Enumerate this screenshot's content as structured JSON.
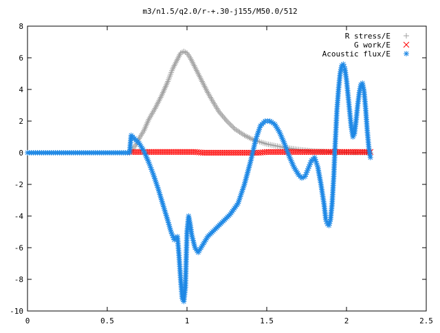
{
  "chart_data": {
    "type": "scatter",
    "title": "m3/n1.5/q2.0/r-+.30-j155/M50.0/512",
    "xlabel": "",
    "ylabel": "",
    "xlim": [
      0,
      2.5
    ],
    "ylim": [
      -10,
      8
    ],
    "x_ticks": [
      "0",
      "0.5",
      "1",
      "1.5",
      "2",
      "2.5"
    ],
    "y_ticks": [
      "-10",
      "-8",
      "-6",
      "-4",
      "-2",
      "0",
      "2",
      "4",
      "6",
      "8"
    ],
    "legend_position": "top-right",
    "grid": false,
    "series": [
      {
        "name": "R stress/E",
        "marker": "+",
        "color": "#a0a0a0",
        "points": [
          [
            0.65,
            0.1
          ],
          [
            0.68,
            0.5
          ],
          [
            0.7,
            0.9
          ],
          [
            0.73,
            1.4
          ],
          [
            0.76,
            2.1
          ],
          [
            0.8,
            2.8
          ],
          [
            0.84,
            3.6
          ],
          [
            0.88,
            4.5
          ],
          [
            0.91,
            5.3
          ],
          [
            0.94,
            5.9
          ],
          [
            0.96,
            6.3
          ],
          [
            0.98,
            6.4
          ],
          [
            1.0,
            6.3
          ],
          [
            1.02,
            6.0
          ],
          [
            1.04,
            5.6
          ],
          [
            1.07,
            5.0
          ],
          [
            1.1,
            4.4
          ],
          [
            1.13,
            3.8
          ],
          [
            1.17,
            3.1
          ],
          [
            1.2,
            2.6
          ],
          [
            1.25,
            2.0
          ],
          [
            1.3,
            1.5
          ],
          [
            1.36,
            1.1
          ],
          [
            1.42,
            0.8
          ],
          [
            1.5,
            0.55
          ],
          [
            1.6,
            0.35
          ],
          [
            1.7,
            0.2
          ],
          [
            1.8,
            0.1
          ],
          [
            1.9,
            0.05
          ],
          [
            2.0,
            0.02
          ],
          [
            2.1,
            0.01
          ],
          [
            2.15,
            0.0
          ]
        ]
      },
      {
        "name": "G work/E",
        "marker": "x",
        "color": "#ff0000",
        "points": [
          [
            0.65,
            0.05
          ],
          [
            0.7,
            0.05
          ],
          [
            0.75,
            0.05
          ],
          [
            0.8,
            0.05
          ],
          [
            0.85,
            0.05
          ],
          [
            0.9,
            0.05
          ],
          [
            0.95,
            0.05
          ],
          [
            1.0,
            0.05
          ],
          [
            1.05,
            0.05
          ],
          [
            1.1,
            0.0
          ],
          [
            1.15,
            0.0
          ],
          [
            1.2,
            0.0
          ],
          [
            1.25,
            0.0
          ],
          [
            1.3,
            0.0
          ],
          [
            1.35,
            0.0
          ],
          [
            1.4,
            0.0
          ],
          [
            1.45,
            0.0
          ],
          [
            1.5,
            0.05
          ],
          [
            1.55,
            0.05
          ],
          [
            1.6,
            0.05
          ],
          [
            1.65,
            0.05
          ],
          [
            1.7,
            0.05
          ],
          [
            1.75,
            0.05
          ],
          [
            1.8,
            0.05
          ],
          [
            1.85,
            0.05
          ],
          [
            1.9,
            0.05
          ],
          [
            1.95,
            0.05
          ],
          [
            2.0,
            0.05
          ],
          [
            2.05,
            0.05
          ],
          [
            2.1,
            0.05
          ],
          [
            2.15,
            0.05
          ]
        ]
      },
      {
        "name": "Acoustic flux/E",
        "marker": "*",
        "color": "#1e88e5",
        "points": [
          [
            0.0,
            0.0
          ],
          [
            0.05,
            0.0
          ],
          [
            0.1,
            0.0
          ],
          [
            0.15,
            0.0
          ],
          [
            0.2,
            0.0
          ],
          [
            0.25,
            0.0
          ],
          [
            0.3,
            0.0
          ],
          [
            0.35,
            0.0
          ],
          [
            0.4,
            0.0
          ],
          [
            0.45,
            0.0
          ],
          [
            0.5,
            0.0
          ],
          [
            0.55,
            0.0
          ],
          [
            0.6,
            0.0
          ],
          [
            0.64,
            0.0
          ],
          [
            0.65,
            1.1
          ],
          [
            0.67,
            0.9
          ],
          [
            0.7,
            0.6
          ],
          [
            0.73,
            0.1
          ],
          [
            0.76,
            -0.6
          ],
          [
            0.79,
            -1.4
          ],
          [
            0.82,
            -2.3
          ],
          [
            0.85,
            -3.3
          ],
          [
            0.88,
            -4.3
          ],
          [
            0.9,
            -5.0
          ],
          [
            0.92,
            -5.5
          ],
          [
            0.94,
            -5.3
          ],
          [
            0.95,
            -6.5
          ],
          [
            0.96,
            -8.0
          ],
          [
            0.97,
            -9.2
          ],
          [
            0.98,
            -9.4
          ],
          [
            0.99,
            -8.5
          ],
          [
            1.0,
            -5.0
          ],
          [
            1.01,
            -4.0
          ],
          [
            1.02,
            -4.5
          ],
          [
            1.03,
            -5.2
          ],
          [
            1.05,
            -6.0
          ],
          [
            1.07,
            -6.3
          ],
          [
            1.1,
            -5.8
          ],
          [
            1.13,
            -5.3
          ],
          [
            1.17,
            -4.9
          ],
          [
            1.22,
            -4.4
          ],
          [
            1.27,
            -3.9
          ],
          [
            1.32,
            -3.2
          ],
          [
            1.36,
            -2.0
          ],
          [
            1.4,
            -0.5
          ],
          [
            1.43,
            0.8
          ],
          [
            1.46,
            1.7
          ],
          [
            1.49,
            2.0
          ],
          [
            1.52,
            2.0
          ],
          [
            1.55,
            1.8
          ],
          [
            1.58,
            1.3
          ],
          [
            1.61,
            0.6
          ],
          [
            1.64,
            -0.2
          ],
          [
            1.67,
            -0.9
          ],
          [
            1.7,
            -1.4
          ],
          [
            1.72,
            -1.6
          ],
          [
            1.74,
            -1.5
          ],
          [
            1.76,
            -1.0
          ],
          [
            1.78,
            -0.5
          ],
          [
            1.8,
            -0.3
          ],
          [
            1.82,
            -0.9
          ],
          [
            1.84,
            -2.0
          ],
          [
            1.86,
            -3.3
          ],
          [
            1.87,
            -4.2
          ],
          [
            1.88,
            -4.5
          ],
          [
            1.89,
            -4.6
          ],
          [
            1.9,
            -4.2
          ],
          [
            1.91,
            -3.2
          ],
          [
            1.92,
            -1.5
          ],
          [
            1.93,
            0.7
          ],
          [
            1.94,
            2.7
          ],
          [
            1.95,
            4.0
          ],
          [
            1.96,
            5.0
          ],
          [
            1.97,
            5.5
          ],
          [
            1.98,
            5.6
          ],
          [
            1.99,
            5.3
          ],
          [
            2.0,
            4.6
          ],
          [
            2.01,
            3.6
          ],
          [
            2.02,
            2.6
          ],
          [
            2.03,
            1.6
          ],
          [
            2.04,
            1.0
          ],
          [
            2.05,
            1.2
          ],
          [
            2.06,
            2.0
          ],
          [
            2.07,
            3.0
          ],
          [
            2.08,
            3.8
          ],
          [
            2.09,
            4.3
          ],
          [
            2.1,
            4.4
          ],
          [
            2.11,
            3.9
          ],
          [
            2.12,
            2.8
          ],
          [
            2.13,
            1.4
          ],
          [
            2.14,
            0.3
          ],
          [
            2.15,
            -0.3
          ]
        ]
      }
    ]
  }
}
